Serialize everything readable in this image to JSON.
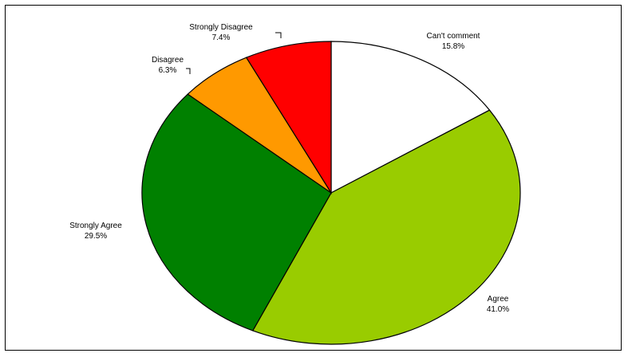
{
  "chart_data": {
    "type": "pie",
    "title": "",
    "start_angle_deg": 0,
    "direction": "clockwise",
    "slices": [
      {
        "label": "Can't comment",
        "value": 15.8,
        "value_label": "15.8%",
        "color": "#ffffff"
      },
      {
        "label": "Agree",
        "value": 41.0,
        "value_label": "41.0%",
        "color": "#99cc00"
      },
      {
        "label": "Strongly Agree",
        "value": 29.5,
        "value_label": "29.5%",
        "color": "#008000"
      },
      {
        "label": "Disagree",
        "value": 6.3,
        "value_label": "6.3%",
        "color": "#ff9900"
      },
      {
        "label": "Strongly Disagree",
        "value": 7.4,
        "value_label": "7.4%",
        "color": "#ff0000"
      }
    ],
    "legend": "none",
    "outline_color": "#000000"
  }
}
